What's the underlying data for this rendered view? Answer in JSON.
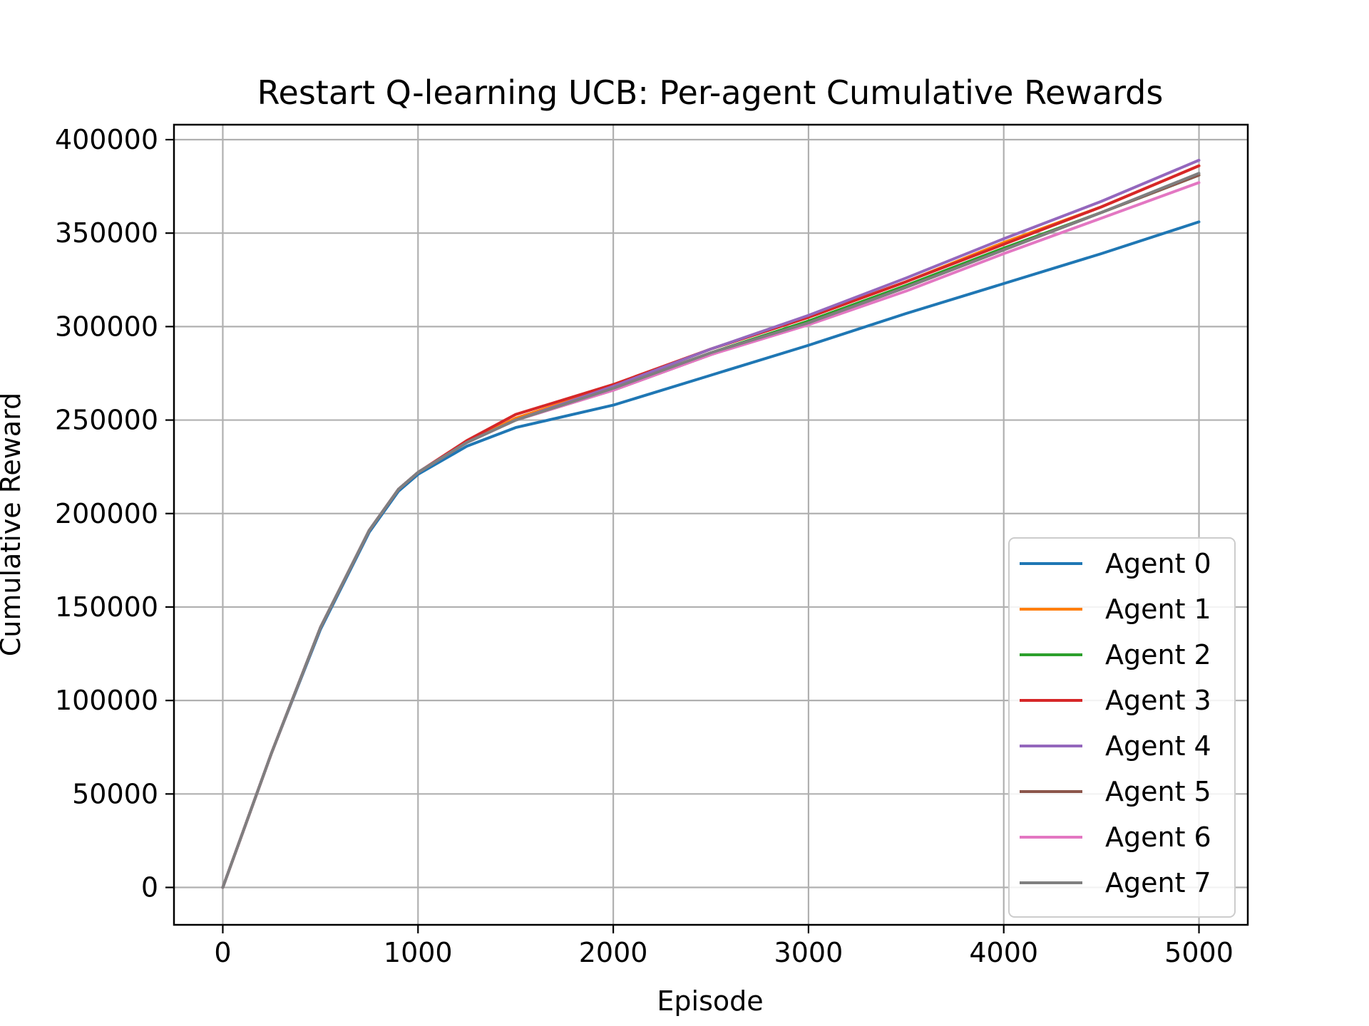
{
  "chart_data": {
    "type": "line",
    "title": "Restart Q-learning UCB: Per-agent Cumulative Rewards",
    "xlabel": "Episode",
    "ylabel": "Cumulative Reward",
    "xlim": [
      -250,
      5250
    ],
    "ylim": [
      -20000,
      408000
    ],
    "xticks": [
      0,
      1000,
      2000,
      3000,
      4000,
      5000
    ],
    "xtick_labels": [
      "0",
      "1000",
      "2000",
      "3000",
      "4000",
      "5000"
    ],
    "yticks": [
      0,
      50000,
      100000,
      150000,
      200000,
      250000,
      300000,
      350000,
      400000
    ],
    "ytick_labels": [
      "0",
      "50000",
      "100000",
      "150000",
      "200000",
      "250000",
      "300000",
      "350000",
      "400000"
    ],
    "grid": true,
    "legend_position": "lower-right",
    "x": [
      0,
      250,
      500,
      750,
      900,
      1000,
      1250,
      1500,
      2000,
      2500,
      3000,
      3500,
      4000,
      4500,
      5000
    ],
    "series": [
      {
        "name": "Agent 0",
        "color": "#1f77b4",
        "values": [
          0,
          72000,
          138000,
          190000,
          212000,
          221000,
          236000,
          246000,
          258000,
          274000,
          290000,
          307000,
          323000,
          339000,
          356000
        ]
      },
      {
        "name": "Agent 1",
        "color": "#ff7f0e",
        "values": [
          0,
          72000,
          139000,
          191000,
          213000,
          222000,
          238000,
          251000,
          268000,
          288000,
          305000,
          324000,
          345000,
          364000,
          386000
        ]
      },
      {
        "name": "Agent 2",
        "color": "#2ca02c",
        "values": [
          0,
          72000,
          139000,
          191000,
          213000,
          222000,
          238000,
          250000,
          267000,
          286000,
          303000,
          322000,
          342000,
          361000,
          381000
        ]
      },
      {
        "name": "Agent 3",
        "color": "#d62728",
        "values": [
          0,
          72000,
          139000,
          191000,
          213000,
          222000,
          239000,
          253000,
          269000,
          288000,
          305000,
          324000,
          344000,
          364000,
          386000
        ]
      },
      {
        "name": "Agent 4",
        "color": "#9467bd",
        "values": [
          0,
          72000,
          139000,
          191000,
          213000,
          222000,
          238000,
          250000,
          268000,
          288000,
          306000,
          326000,
          347000,
          367000,
          389000
        ]
      },
      {
        "name": "Agent 5",
        "color": "#8c564b",
        "values": [
          0,
          72000,
          139000,
          191000,
          213000,
          222000,
          238000,
          250000,
          266000,
          285000,
          302000,
          321000,
          341000,
          361000,
          381000
        ]
      },
      {
        "name": "Agent 6",
        "color": "#e377c2",
        "values": [
          0,
          72000,
          139000,
          191000,
          213000,
          222000,
          238000,
          250000,
          266000,
          285000,
          301000,
          319000,
          339000,
          358000,
          377000
        ]
      },
      {
        "name": "Agent 7",
        "color": "#7f7f7f",
        "values": [
          0,
          72000,
          139000,
          191000,
          213000,
          222000,
          238000,
          250000,
          267000,
          286000,
          302000,
          321000,
          341000,
          361000,
          382000
        ]
      }
    ]
  }
}
